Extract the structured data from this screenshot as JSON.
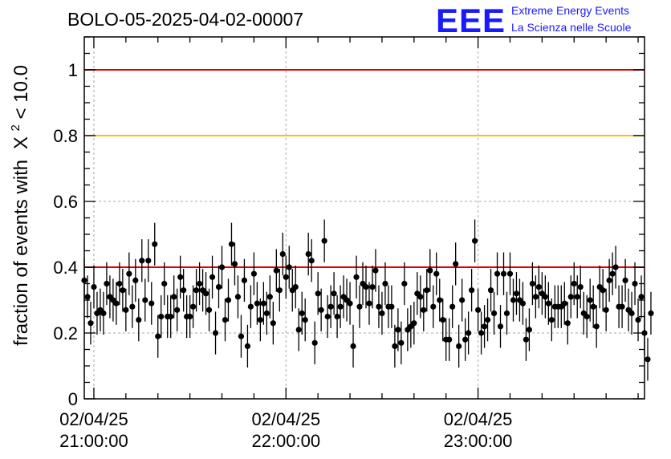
{
  "title": "BOLO-05-2025-04-02-00007",
  "logo": {
    "mark": "EEE",
    "line1": "Extreme Energy Events",
    "line2": "La Scienza nelle Scuole"
  },
  "colors": {
    "red_line": "#e00000",
    "yellow_line": "#ffc000",
    "points": "#000000",
    "grid": "#aaaaaa",
    "logo": "#1a1aff"
  },
  "chart_data": {
    "type": "scatter",
    "title": "BOLO-05-2025-04-02-00007",
    "ylabel": "fraction of events with",
    "ylabel_math": {
      "symbol": "X",
      "superscript": "2",
      "tail": " < 10.0"
    },
    "xlabel": "",
    "ylim": [
      0,
      1.1
    ],
    "y_ticks": [
      0,
      0.2,
      0.4,
      0.6,
      0.8,
      1
    ],
    "y_tick_labels": [
      "0",
      "0.2",
      "0.4",
      "0.6",
      "0.8",
      "1"
    ],
    "x_unit": "minutes after 02/04/25 20:00:00",
    "xlim": [
      57,
      232
    ],
    "x_ticks": [
      60,
      120,
      180
    ],
    "x_tick_labels": [
      {
        "date": "02/04/25",
        "time": "21:00:00"
      },
      {
        "date": "02/04/25",
        "time": "22:00:00"
      },
      {
        "date": "02/04/25",
        "time": "23:00:00"
      }
    ],
    "grid": true,
    "reference_lines": [
      {
        "y": 1.0,
        "color": "#e00000"
      },
      {
        "y": 0.8,
        "color": "#ffc000"
      },
      {
        "y": 0.4,
        "color": "#e00000"
      }
    ],
    "x_start": 57,
    "x_step": 1,
    "error": 0.065,
    "y": [
      0.36,
      0.31,
      0.23,
      0.34,
      0.26,
      0.27,
      0.26,
      0.35,
      0.31,
      0.3,
      0.29,
      0.35,
      0.33,
      0.27,
      0.38,
      0.28,
      0.36,
      0.24,
      0.42,
      0.3,
      0.42,
      0.29,
      0.47,
      0.19,
      0.25,
      0.35,
      0.25,
      0.25,
      0.31,
      0.27,
      0.37,
      0.33,
      0.25,
      0.25,
      0.28,
      0.33,
      0.35,
      0.33,
      0.32,
      0.27,
      0.37,
      0.2,
      0.34,
      0.4,
      0.24,
      0.3,
      0.47,
      0.41,
      0.31,
      0.19,
      0.36,
      0.16,
      0.28,
      0.38,
      0.29,
      0.24,
      0.29,
      0.26,
      0.31,
      0.23,
      0.39,
      0.33,
      0.44,
      0.37,
      0.4,
      0.33,
      0.34,
      0.21,
      0.26,
      0.24,
      0.44,
      0.42,
      0.17,
      0.32,
      0.27,
      0.48,
      0.25,
      0.28,
      0.32,
      0.25,
      0.28,
      0.31,
      0.3,
      0.29,
      0.16,
      0.37,
      0.28,
      0.35,
      0.34,
      0.29,
      0.34,
      0.39,
      0.28,
      0.26,
      0.35,
      0.28,
      0.28,
      0.16,
      0.21,
      0.17,
      0.35,
      0.21,
      0.22,
      0.23,
      0.32,
      0.31,
      0.27,
      0.33,
      0.39,
      0.28,
      0.38,
      0.3,
      0.24,
      0.18,
      0.18,
      0.28,
      0.41,
      0.16,
      0.3,
      0.18,
      0.2,
      0.33,
      0.48,
      0.27,
      0.2,
      0.22,
      0.24,
      0.33,
      0.26,
      0.38,
      0.22,
      0.38,
      0.26,
      0.38,
      0.3,
      0.32,
      0.3,
      0.29,
      0.18,
      0.21,
      0.35,
      0.31,
      0.34,
      0.32,
      0.31,
      0.29,
      0.24,
      0.28,
      0.28,
      0.28,
      0.29,
      0.23,
      0.31,
      0.35,
      0.31,
      0.34,
      0.26,
      0.25,
      0.3,
      0.28,
      0.22,
      0.34,
      0.33,
      0.27,
      0.36,
      0.38,
      0.4,
      0.28,
      0.28,
      0.36,
      0.27,
      0.26,
      0.35,
      0.24,
      0.31,
      0.2,
      0.12,
      0.26
    ]
  }
}
